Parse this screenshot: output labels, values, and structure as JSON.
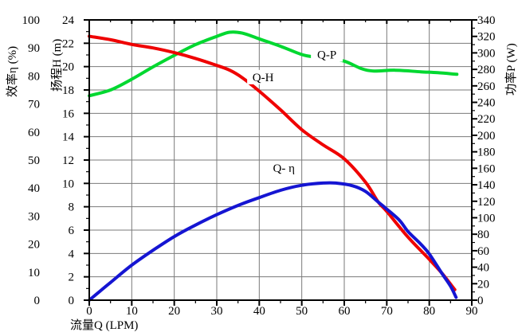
{
  "chart_data": {
    "type": "line",
    "title": "",
    "background": "#ffffff",
    "grid": true,
    "grid_color": "#7a7a7a",
    "axis_color": "#000000",
    "legend_position": "none",
    "x_axis": {
      "label": "流量Q (LPM)",
      "min": 0,
      "max": 90,
      "major_tick": 10,
      "minor_tick": 5,
      "gridline_every": 10,
      "tick_labels": [
        "0",
        "10",
        "20",
        "30",
        "40",
        "50",
        "60",
        "70",
        "80",
        "90"
      ]
    },
    "y_axes": [
      {
        "id": "eta",
        "label": "效率η (%)",
        "side": "left-outer",
        "min": 0,
        "max": 100,
        "major_tick": 10,
        "tick_labels": [
          "0",
          "10",
          "20",
          "30",
          "40",
          "50",
          "60",
          "70",
          "80",
          "90",
          "100"
        ]
      },
      {
        "id": "H",
        "label": "扬程H (m)",
        "side": "left",
        "min": 0,
        "max": 24,
        "major_tick": 2,
        "minor_tick": 1,
        "gridline_every": 2,
        "tick_labels": [
          "0",
          "2",
          "4",
          "6",
          "8",
          "10",
          "12",
          "14",
          "16",
          "18",
          "20",
          "22",
          "24"
        ]
      },
      {
        "id": "P",
        "label": "功率P (W)",
        "side": "right",
        "min": 0,
        "max": 340,
        "major_tick": 20,
        "minor_tick": 10,
        "tick_labels": [
          "0",
          "20",
          "40",
          "60",
          "80",
          "100",
          "120",
          "140",
          "160",
          "180",
          "200",
          "220",
          "240",
          "260",
          "280",
          "300",
          "320",
          "340"
        ]
      }
    ],
    "series": [
      {
        "name": "Q-P",
        "y_axis": "P",
        "color": "#00d830",
        "points": [
          [
            0,
            248
          ],
          [
            5,
            255
          ],
          [
            10,
            268
          ],
          [
            15,
            283
          ],
          [
            20,
            297
          ],
          [
            25,
            310
          ],
          [
            30,
            320
          ],
          [
            33,
            325
          ],
          [
            36,
            324
          ],
          [
            40,
            317
          ],
          [
            45,
            308
          ],
          [
            50,
            298
          ],
          [
            53,
            295
          ],
          [
            56,
            293
          ],
          [
            60,
            290
          ],
          [
            64,
            281
          ],
          [
            67,
            278
          ],
          [
            72,
            279
          ],
          [
            78,
            277
          ],
          [
            82,
            276
          ],
          [
            86.5,
            274
          ]
        ]
      },
      {
        "name": "Q-H",
        "y_axis": "H",
        "color": "#ef0000",
        "points": [
          [
            0,
            22.6
          ],
          [
            5,
            22.3
          ],
          [
            10,
            21.9
          ],
          [
            15,
            21.6
          ],
          [
            20,
            21.2
          ],
          [
            25,
            20.7
          ],
          [
            30,
            20.1
          ],
          [
            33,
            19.7
          ],
          [
            36,
            19.05
          ],
          [
            40,
            17.9
          ],
          [
            45,
            16.3
          ],
          [
            50,
            14.6
          ],
          [
            55,
            13.3
          ],
          [
            60,
            12.1
          ],
          [
            65,
            10.1
          ],
          [
            68,
            8.4
          ],
          [
            70,
            7.6
          ],
          [
            75,
            5.4
          ],
          [
            80,
            3.5
          ],
          [
            83,
            2.3
          ],
          [
            86,
            0.9
          ]
        ]
      },
      {
        "name": "Q-η",
        "y_axis": "eta",
        "color": "#1515d2",
        "points": [
          [
            0,
            0
          ],
          [
            3,
            3.8
          ],
          [
            5,
            6.3
          ],
          [
            10,
            12.5
          ],
          [
            15,
            17.8
          ],
          [
            20,
            22.7
          ],
          [
            25,
            26.8
          ],
          [
            30,
            30.5
          ],
          [
            35,
            33.8
          ],
          [
            40,
            36.6
          ],
          [
            45,
            39.2
          ],
          [
            50,
            41
          ],
          [
            55,
            41.8
          ],
          [
            58,
            41.8
          ],
          [
            62,
            40.8
          ],
          [
            65,
            38.8
          ],
          [
            68,
            35
          ],
          [
            70,
            32.5
          ],
          [
            73,
            28.5
          ],
          [
            75,
            24.5
          ],
          [
            78,
            20
          ],
          [
            80,
            16.5
          ],
          [
            83,
            9.5
          ],
          [
            85,
            5
          ],
          [
            86.3,
            1
          ]
        ]
      }
    ],
    "annotations": [
      {
        "text": "Q-P",
        "x": 55.9,
        "y": 298,
        "y_axis": "P"
      },
      {
        "text": "Q-H",
        "x": 40.9,
        "y": 19.1,
        "y_axis": "H"
      },
      {
        "text": "Q- η",
        "x": 45.8,
        "y": 47.2,
        "y_axis": "eta"
      }
    ]
  }
}
